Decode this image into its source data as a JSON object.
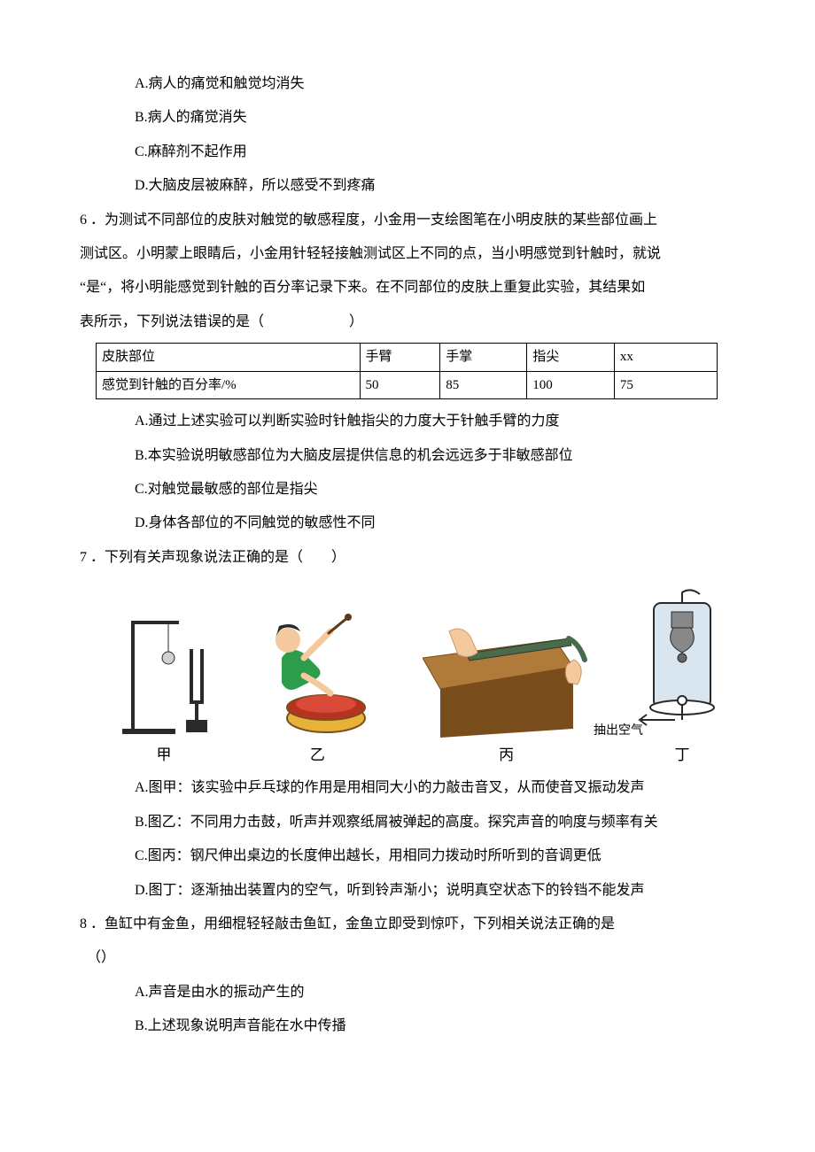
{
  "q5": {
    "A": "A.病人的痛觉和触觉均消失",
    "B": "B.病人的痛觉消失",
    "C": "C.麻醉剂不起作用",
    "D": "D.大脑皮层被麻醉，所以感受不到疼痛"
  },
  "q6": {
    "stem_line1": "6 ．为测试不同部位的皮肤对触觉的敏感程度，小金用一支绘图笔在小明皮肤的某些部位画上",
    "stem_line2": "测试区。小明蒙上眼睛后，小金用针轻轻接触测试区上不同的点，当小明感觉到针触时，就说",
    "stem_line3": "“是“，将小明能感觉到针触的百分率记录下来。在不同部位的皮肤上重复此实验，其结果如",
    "stem_line4": "表所示，下列说法错误的是（　　　　　　）",
    "table": {
      "columns": [
        "皮肤部位",
        "手臂",
        "手掌",
        "指尖",
        "xx"
      ],
      "row_label": "感觉到针触的百分率/%",
      "values": [
        "50",
        "85",
        "100",
        "75"
      ],
      "col_widths": [
        "310px",
        "84px",
        "92px",
        "92px",
        "112px"
      ],
      "border_color": "#000000",
      "font_size": 15
    },
    "A": "A.通过上述实验可以判断实验时针触指尖的力度大于针触手臂的力度",
    "B": "B.本实验说明敏感部位为大脑皮层提供信息的机会远远多于非敏感部位",
    "C": "C.对触觉最敏感的部位是指尖",
    "D": "D.身体各部位的不同触觉的敏感性不同"
  },
  "q7": {
    "stem": "7 ．下列有关声现象说法正确的是（　　）",
    "figs": {
      "cap1": "甲",
      "cap2": "乙",
      "cap3": "丙",
      "cap4": "丁",
      "label_ding": "抽出空气",
      "colors": {
        "stand": "#2a2a2a",
        "ball": "#d0d0d0",
        "drum_body": "#e6b23a",
        "drum_top": "#b5331f",
        "skin_shirt": "#2d9c4b",
        "skin_face": "#f5c99e",
        "skin_hair": "#2a2a2a",
        "wood": "#b07a3a",
        "wood_dark": "#7a4d1c",
        "ruler": "#4a6a4a",
        "jar_glass": "#d9e6ef",
        "jar_stroke": "#2a2a2a",
        "bell": "#888888"
      }
    },
    "A": "A.图甲：该实验中乒乓球的作用是用相同大小的力敲击音叉，从而使音叉振动发声",
    "B": "B.图乙：不同用力击鼓，听声并观察纸屑被弹起的高度。探究声音的响度与频率有关",
    "C": "C.图丙：钢尺伸出桌边的长度伸出越长，用相同力拨动时所听到的音调更低",
    "D": "D.图丁：逐渐抽出装置内的空气，听到铃声渐小；说明真空状态下的铃铛不能发声"
  },
  "q8": {
    "stem_line1": "8 ．鱼缸中有金鱼，用细棍轻轻敲击鱼缸，金鱼立即受到惊吓，下列相关说法正确的是",
    "stem_line2": "（）",
    "A": "A.声音是由水的振动产生的",
    "B": "B.上述现象说明声音能在水中传播"
  }
}
